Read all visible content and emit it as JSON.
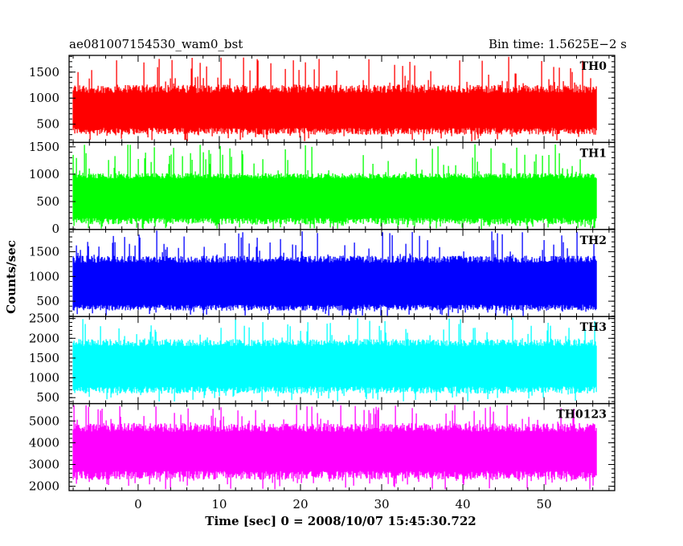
{
  "header": {
    "left": "ae081007154530_wam0_bst",
    "right": "Bin time: 1.5625E−2 s"
  },
  "chart_data": {
    "type": "line",
    "title": "ae081007154530_wam0_bst",
    "subtitle": "Bin time: 1.5625E−2 s",
    "xlabel": "Time [sec] 0 = 2008/10/07 15:45:30.722",
    "ylabel": "Counts/sec",
    "xlim": [
      -8.5,
      58.7
    ],
    "x_ticks": [
      0,
      10,
      20,
      30,
      40,
      50
    ],
    "x_range_data": [
      -8.0,
      56.5
    ],
    "bin_time_s": 0.015625,
    "grid": false,
    "panels": [
      {
        "name": "TH0",
        "color": "#ff0000",
        "ylim": [
          150,
          1820
        ],
        "y_ticks": [
          500,
          1000,
          1500
        ],
        "band_low": [
          300,
          430
        ],
        "band_high": [
          1100,
          1260
        ],
        "spike_low": 170,
        "spike_high": 1800
      },
      {
        "name": "TH1",
        "color": "#00ff00",
        "ylim": [
          -10,
          1580
        ],
        "y_ticks": [
          0,
          500,
          1000,
          1500
        ],
        "band_low": [
          80,
          200
        ],
        "band_high": [
          920,
          1020
        ],
        "spike_low": 0,
        "spike_high": 1560
      },
      {
        "name": "TH2",
        "color": "#0000ff",
        "ylim": [
          190,
          1950
        ],
        "y_ticks": [
          500,
          1000,
          1500
        ],
        "band_low": [
          310,
          430
        ],
        "band_high": [
          1280,
          1420
        ],
        "spike_low": 200,
        "spike_high": 1930
      },
      {
        "name": "TH3",
        "color": "#00ffff",
        "ylim": [
          350,
          2550
        ],
        "y_ticks": [
          500,
          1000,
          1500,
          2000,
          2500
        ],
        "band_low": [
          600,
          780
        ],
        "band_high": [
          1800,
          1980
        ],
        "spike_low": 380,
        "spike_high": 2530
      },
      {
        "name": "TH0123",
        "color": "#ff00ff",
        "ylim": [
          1800,
          5800
        ],
        "y_ticks": [
          2000,
          3000,
          4000,
          5000
        ],
        "band_low": [
          2300,
          2700
        ],
        "band_high": [
          4500,
          4900
        ],
        "spike_low": 1850,
        "spike_high": 5750
      }
    ]
  }
}
